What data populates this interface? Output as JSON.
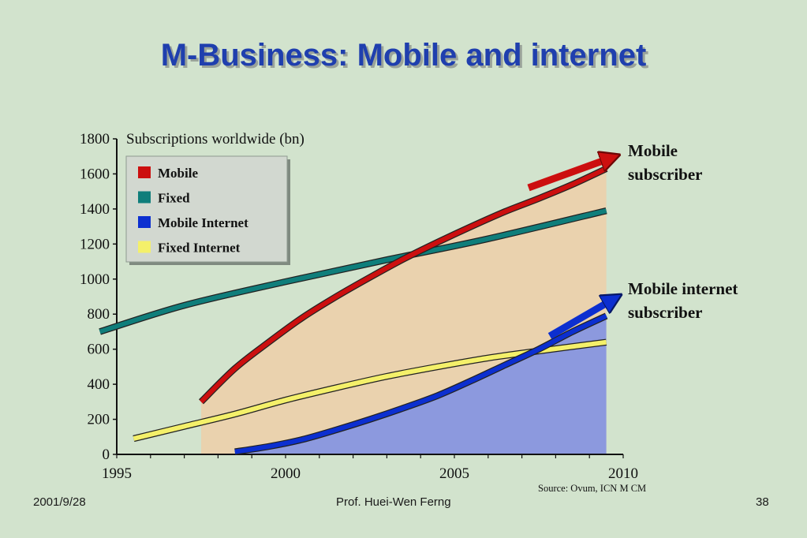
{
  "slide": {
    "title": "M-Business: Mobile and internet",
    "footer_date": "2001/9/28",
    "footer_author": "Prof. Huei-Wen Ferng",
    "page_number": "38",
    "source_note": "Source: Ovum, ICN M CM"
  },
  "callouts": {
    "mobile_line1": "Mobile",
    "mobile_line2": "subscriber",
    "mobile_internet_line1": "Mobile internet",
    "mobile_internet_line2": "subscriber"
  },
  "chart_data": {
    "type": "line",
    "title": "Subscriptions worldwide (bn)",
    "xlabel": "",
    "ylabel": "",
    "xlim": [
      1995,
      2010
    ],
    "ylim": [
      0,
      1800
    ],
    "x_ticks": [
      1995,
      2000,
      2005,
      2010
    ],
    "y_ticks": [
      0,
      200,
      400,
      600,
      800,
      1000,
      1200,
      1400,
      1600,
      1800
    ],
    "grid": false,
    "legend_position": "top-left",
    "shaded_areas": [
      {
        "series": "Mobile",
        "color": "#ead2ae"
      },
      {
        "series": "Mobile Internet",
        "color": "#8c99de"
      }
    ],
    "series": [
      {
        "name": "Mobile",
        "color": "#cc0f0f",
        "x": [
          1997.5,
          1998.5,
          1999.5,
          2000.5,
          2001.5,
          2002.5,
          2003.5,
          2004.5,
          2005.5,
          2006.5,
          2007.5,
          2008.5,
          2009.5
        ],
        "y": [
          300,
          490,
          640,
          780,
          900,
          1010,
          1115,
          1210,
          1300,
          1385,
          1460,
          1540,
          1630
        ]
      },
      {
        "name": "Fixed",
        "color": "#0f7e7b",
        "x": [
          1994.5,
          1997,
          2000,
          2003,
          2006,
          2009.5
        ],
        "y": [
          700,
          850,
          985,
          1110,
          1230,
          1390
        ]
      },
      {
        "name": "Mobile Internet",
        "color": "#0c2fd0",
        "x": [
          1998.5,
          1999.5,
          2000.5,
          2001.5,
          2002.5,
          2003.5,
          2004.5,
          2005.5,
          2006.5,
          2007.5,
          2008.5,
          2009.5
        ],
        "y": [
          15,
          45,
          85,
          140,
          200,
          265,
          335,
          420,
          510,
          600,
          700,
          790
        ]
      },
      {
        "name": "Fixed Internet",
        "color": "#f4f06a",
        "x": [
          1995.5,
          1997,
          1998.5,
          2000,
          2001.5,
          2003,
          2004.5,
          2006,
          2007.5,
          2009.5
        ],
        "y": [
          90,
          160,
          230,
          310,
          380,
          445,
          500,
          550,
          590,
          640
        ]
      }
    ]
  }
}
